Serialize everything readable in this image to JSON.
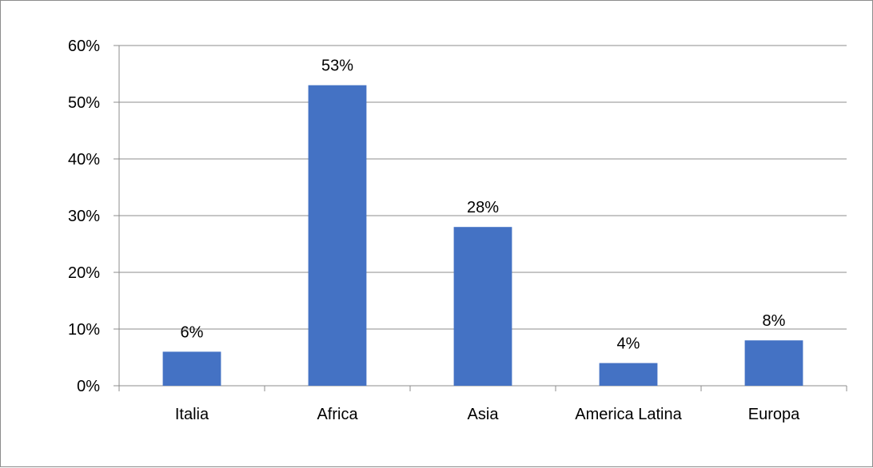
{
  "chart_data": {
    "type": "bar",
    "categories": [
      "Italia",
      "Africa",
      "Asia",
      "America Latina",
      "Europa"
    ],
    "values": [
      6,
      53,
      28,
      4,
      8
    ],
    "value_labels": [
      "6%",
      "53%",
      "28%",
      "4%",
      "8%"
    ],
    "yticks": [
      "0%",
      "10%",
      "20%",
      "30%",
      "40%",
      "50%",
      "60%"
    ],
    "ylim": [
      0,
      60
    ],
    "bar_color": "#4472C4",
    "grid": true,
    "title": "",
    "xlabel": "",
    "ylabel": ""
  }
}
